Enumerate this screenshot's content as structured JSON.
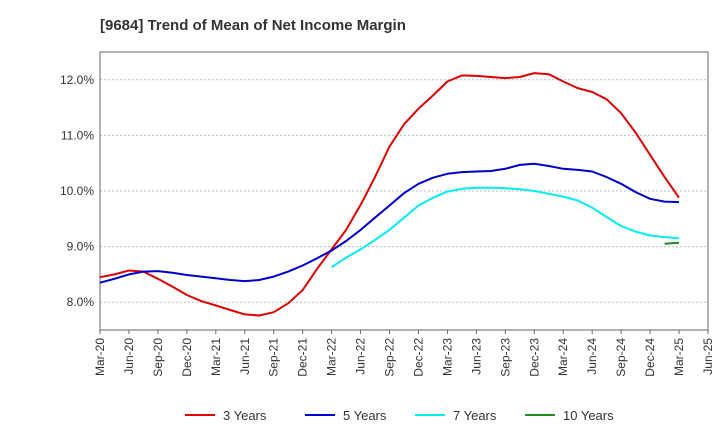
{
  "chart_data": {
    "type": "line",
    "title": "[9684]  Trend of Mean of Net Income Margin",
    "xlabel": "",
    "ylabel": "",
    "x_ticks": [
      "Mar-20",
      "Jun-20",
      "Sep-20",
      "Dec-20",
      "Mar-21",
      "Jun-21",
      "Sep-21",
      "Dec-21",
      "Mar-22",
      "Jun-22",
      "Sep-22",
      "Dec-22",
      "Mar-23",
      "Jun-23",
      "Sep-23",
      "Dec-23",
      "Mar-24",
      "Jun-24",
      "Sep-24",
      "Dec-24",
      "Mar-25",
      "Jun-25"
    ],
    "y_ticks": [
      "8.0%",
      "9.0%",
      "10.0%",
      "11.0%",
      "12.0%"
    ],
    "y_tick_values": [
      8.0,
      9.0,
      10.0,
      11.0,
      12.0
    ],
    "ylim": [
      7.5,
      12.5
    ],
    "grid": true,
    "legend_position": "bottom",
    "series": [
      {
        "name": "3 Years",
        "color": "#dd0000",
        "points": [
          [
            0,
            8.45
          ],
          [
            1,
            8.5
          ],
          [
            2,
            8.57
          ],
          [
            3,
            8.55
          ],
          [
            4,
            8.42
          ],
          [
            5,
            8.28
          ],
          [
            6,
            8.13
          ],
          [
            7,
            8.02
          ],
          [
            8,
            7.94
          ],
          [
            9,
            7.86
          ],
          [
            10,
            7.78
          ],
          [
            11,
            7.76
          ],
          [
            12,
            7.82
          ],
          [
            13,
            7.98
          ],
          [
            14,
            8.22
          ],
          [
            15,
            8.6
          ],
          [
            16,
            8.95
          ],
          [
            17,
            9.3
          ],
          [
            18,
            9.75
          ],
          [
            19,
            10.25
          ],
          [
            20,
            10.8
          ],
          [
            21,
            11.2
          ],
          [
            22,
            11.48
          ],
          [
            23,
            11.72
          ],
          [
            24,
            11.97
          ],
          [
            25,
            12.08
          ],
          [
            26,
            12.07
          ],
          [
            27,
            12.05
          ],
          [
            28,
            12.03
          ],
          [
            29,
            12.05
          ],
          [
            30,
            12.12
          ],
          [
            31,
            12.1
          ],
          [
            32,
            11.97
          ],
          [
            33,
            11.85
          ],
          [
            34,
            11.78
          ],
          [
            35,
            11.65
          ],
          [
            36,
            11.4
          ],
          [
            37,
            11.05
          ],
          [
            38,
            10.65
          ],
          [
            39,
            10.25
          ],
          [
            40,
            9.88
          ]
        ]
      },
      {
        "name": "5 Years",
        "color": "#0000cc",
        "points": [
          [
            0,
            8.35
          ],
          [
            1,
            8.42
          ],
          [
            2,
            8.5
          ],
          [
            3,
            8.55
          ],
          [
            4,
            8.56
          ],
          [
            5,
            8.53
          ],
          [
            6,
            8.49
          ],
          [
            7,
            8.46
          ],
          [
            8,
            8.43
          ],
          [
            9,
            8.4
          ],
          [
            10,
            8.38
          ],
          [
            11,
            8.4
          ],
          [
            12,
            8.46
          ],
          [
            13,
            8.55
          ],
          [
            14,
            8.66
          ],
          [
            15,
            8.79
          ],
          [
            16,
            8.93
          ],
          [
            17,
            9.1
          ],
          [
            18,
            9.3
          ],
          [
            19,
            9.52
          ],
          [
            20,
            9.74
          ],
          [
            21,
            9.96
          ],
          [
            22,
            10.13
          ],
          [
            23,
            10.24
          ],
          [
            24,
            10.31
          ],
          [
            25,
            10.34
          ],
          [
            26,
            10.35
          ],
          [
            27,
            10.36
          ],
          [
            28,
            10.4
          ],
          [
            29,
            10.47
          ],
          [
            30,
            10.49
          ],
          [
            31,
            10.45
          ],
          [
            32,
            10.4
          ],
          [
            33,
            10.38
          ],
          [
            34,
            10.35
          ],
          [
            35,
            10.25
          ],
          [
            36,
            10.13
          ],
          [
            37,
            9.98
          ],
          [
            38,
            9.86
          ],
          [
            39,
            9.81
          ],
          [
            40,
            9.8
          ]
        ]
      },
      {
        "name": "7 Years",
        "color": "#00eeee",
        "points": [
          [
            16,
            8.63
          ],
          [
            17,
            8.8
          ],
          [
            18,
            8.95
          ],
          [
            19,
            9.12
          ],
          [
            20,
            9.3
          ],
          [
            21,
            9.52
          ],
          [
            22,
            9.74
          ],
          [
            23,
            9.88
          ],
          [
            24,
            9.99
          ],
          [
            25,
            10.04
          ],
          [
            26,
            10.06
          ],
          [
            27,
            10.06
          ],
          [
            28,
            10.05
          ],
          [
            29,
            10.03
          ],
          [
            30,
            10.0
          ],
          [
            31,
            9.95
          ],
          [
            32,
            9.9
          ],
          [
            33,
            9.83
          ],
          [
            34,
            9.7
          ],
          [
            35,
            9.53
          ],
          [
            36,
            9.37
          ],
          [
            37,
            9.27
          ],
          [
            38,
            9.2
          ],
          [
            39,
            9.17
          ],
          [
            40,
            9.15
          ]
        ]
      },
      {
        "name": "10 Years",
        "color": "#228822",
        "points": [
          [
            39,
            9.05
          ],
          [
            40,
            9.07
          ]
        ]
      }
    ]
  }
}
